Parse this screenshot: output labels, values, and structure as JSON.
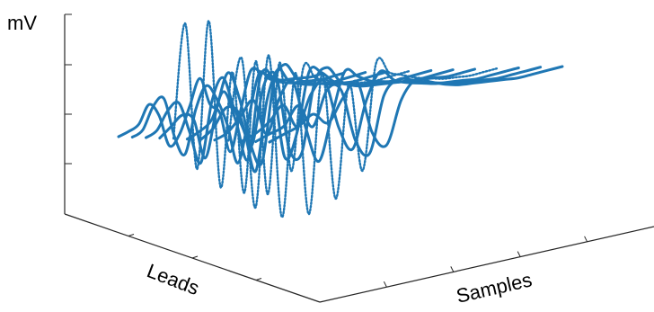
{
  "chart_data": {
    "type": "line",
    "subtype": "3d-waterfall",
    "zlabel": "mV",
    "ylabel": "Leads",
    "xlabel": "Samples",
    "grid": false,
    "legend": "none",
    "series_color": "#1f77b4",
    "n_leads": 12,
    "x": [
      0,
      5,
      10,
      15,
      20,
      25,
      30,
      35,
      40,
      45,
      50,
      55,
      60,
      65,
      70,
      75,
      80,
      85,
      90,
      95,
      100
    ],
    "z_ticks_count": 4,
    "series": [
      {
        "lead": 1,
        "values": [
          0.0,
          0.05,
          0.15,
          0.55,
          0.2,
          -0.6,
          -0.4,
          0.2,
          0.8,
          0.1,
          -0.2,
          -1.2,
          -0.3,
          0.6,
          0.5,
          0.3,
          0.15,
          0.1,
          0.05,
          0.0,
          0.0
        ]
      },
      {
        "lead": 2,
        "values": [
          0.0,
          0.1,
          0.6,
          0.7,
          -0.3,
          -0.8,
          0.2,
          0.7,
          0.3,
          -0.4,
          -1.4,
          -0.4,
          0.6,
          0.4,
          0.25,
          0.15,
          0.1,
          0.05,
          0.0,
          0.0,
          0.0
        ]
      },
      {
        "lead": 3,
        "values": [
          0.0,
          0.1,
          0.5,
          0.6,
          -0.2,
          -1.0,
          0.4,
          0.9,
          0.1,
          -0.6,
          -1.6,
          0.0,
          0.7,
          0.35,
          0.2,
          0.1,
          0.05,
          0.0,
          0.0,
          0.0,
          0.0
        ]
      },
      {
        "lead": 4,
        "values": [
          0.0,
          0.2,
          0.4,
          0.2,
          -0.8,
          0.3,
          1.1,
          0.4,
          -0.8,
          -1.3,
          0.5,
          0.9,
          0.5,
          0.3,
          0.2,
          0.1,
          0.05,
          0.0,
          0.0,
          0.0,
          0.0
        ]
      },
      {
        "lead": 5,
        "values": [
          0.0,
          2.7,
          -0.9,
          2.6,
          -1.5,
          1.2,
          -1.8,
          1.3,
          -2.0,
          1.1,
          -1.6,
          0.8,
          0.5,
          0.35,
          0.2,
          0.1,
          0.05,
          0.0,
          0.0,
          0.0,
          0.0
        ]
      },
      {
        "lead": 6,
        "values": [
          0.0,
          0.1,
          0.3,
          0.9,
          0.1,
          -0.9,
          1.0,
          0.8,
          -1.1,
          -0.6,
          0.8,
          0.7,
          0.4,
          0.25,
          0.15,
          0.1,
          0.05,
          0.0,
          0.0,
          0.0,
          0.0
        ]
      },
      {
        "lead": 7,
        "values": [
          0.0,
          0.2,
          0.6,
          0.4,
          -0.5,
          0.9,
          1.0,
          -0.8,
          -1.0,
          0.6,
          0.9,
          0.5,
          0.3,
          0.2,
          0.15,
          0.1,
          0.05,
          0.0,
          0.0,
          0.0,
          0.0
        ]
      },
      {
        "lead": 8,
        "values": [
          0.0,
          0.1,
          0.4,
          0.7,
          -0.2,
          0.6,
          0.9,
          -0.3,
          -1.2,
          -0.2,
          0.8,
          0.6,
          0.4,
          0.3,
          0.2,
          0.15,
          0.1,
          0.05,
          0.0,
          0.0,
          0.0
        ]
      },
      {
        "lead": 9,
        "values": [
          0.0,
          1.9,
          -1.8,
          1.8,
          -2.2,
          1.2,
          -2.3,
          1.0,
          -2.1,
          0.6,
          -1.6,
          0.9,
          0.6,
          0.45,
          0.3,
          0.2,
          0.1,
          0.05,
          0.0,
          0.0,
          0.0
        ]
      },
      {
        "lead": 10,
        "values": [
          0.0,
          0.1,
          0.3,
          0.6,
          0.0,
          0.7,
          0.9,
          -0.3,
          -0.9,
          0.2,
          0.8,
          0.5,
          0.35,
          0.25,
          0.15,
          0.1,
          0.05,
          0.0,
          0.0,
          0.0,
          0.0
        ]
      },
      {
        "lead": 11,
        "values": [
          0.0,
          0.1,
          0.2,
          0.6,
          0.0,
          0.8,
          0.7,
          -0.6,
          -1.0,
          0.3,
          0.6,
          0.5,
          0.35,
          0.25,
          0.15,
          0.1,
          0.05,
          0.0,
          0.0,
          0.0,
          0.0
        ]
      },
      {
        "lead": 12,
        "values": [
          0.0,
          0.1,
          0.2,
          0.4,
          0.1,
          0.6,
          0.9,
          -0.4,
          -0.8,
          0.2,
          0.6,
          0.45,
          0.3,
          0.2,
          0.15,
          0.1,
          0.05,
          0.0,
          0.0,
          0.0,
          0.0
        ]
      }
    ],
    "dotted_leads": [
      5,
      9
    ]
  }
}
